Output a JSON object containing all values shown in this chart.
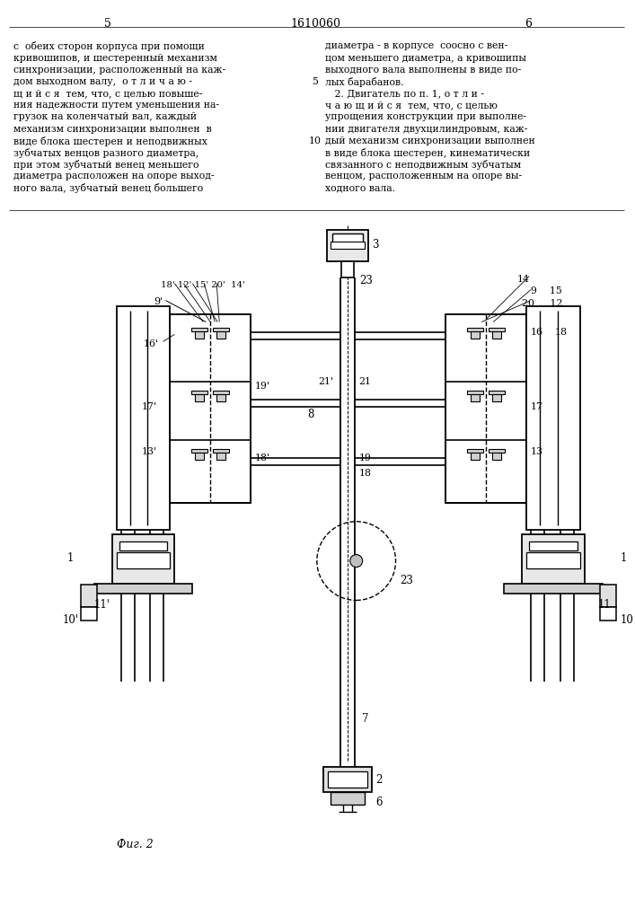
{
  "page_number_left": "5",
  "page_number_center": "1610060",
  "page_number_right": "6",
  "text_left": [
    "с  обеих сторон корпуса при помощи",
    "кривошипов, и шестеренный механизм",
    "синхронизации, расположенный на каж-",
    "дом выходном валу,  о т л и ч а ю -",
    "щ и й с я  тем, что, с целью повыше-",
    "ния надежности путем уменьшения на-",
    "грузок на коленчатый вал, каждый",
    "механизм синхронизации выполнен  в",
    "виде блока шестерен и неподвижных",
    "зубчатых венцов разного диаметра,",
    "при этом зубчатый венец меньшего",
    "диаметра расположен на опоре выход-",
    "ного вала, зубчатый венец большего"
  ],
  "text_right": [
    "диаметра - в корпусе  соосно с вен-",
    "цом меньшего диаметра, а кривошипы",
    "выходного вала выполнены в виде по-",
    "лых барабанов.",
    "   2. Двигатель по п. 1, о т л и -",
    "ч а ю щ и й с я  тем, что, с целью",
    "упрощения конструкции при выполне-",
    "нии двигателя двухцилиндровым, каж-",
    "дый механизм синхронизации выполнен",
    "в виде блока шестерен, кинематически",
    "связанного с неподвижным зубчатым",
    "венцом, расположенным на опоре вы-",
    "ходного вала."
  ],
  "fig_caption": "Фиг. 2",
  "background_color": "#ffffff",
  "line_color": "#000000",
  "text_color": "#000000"
}
